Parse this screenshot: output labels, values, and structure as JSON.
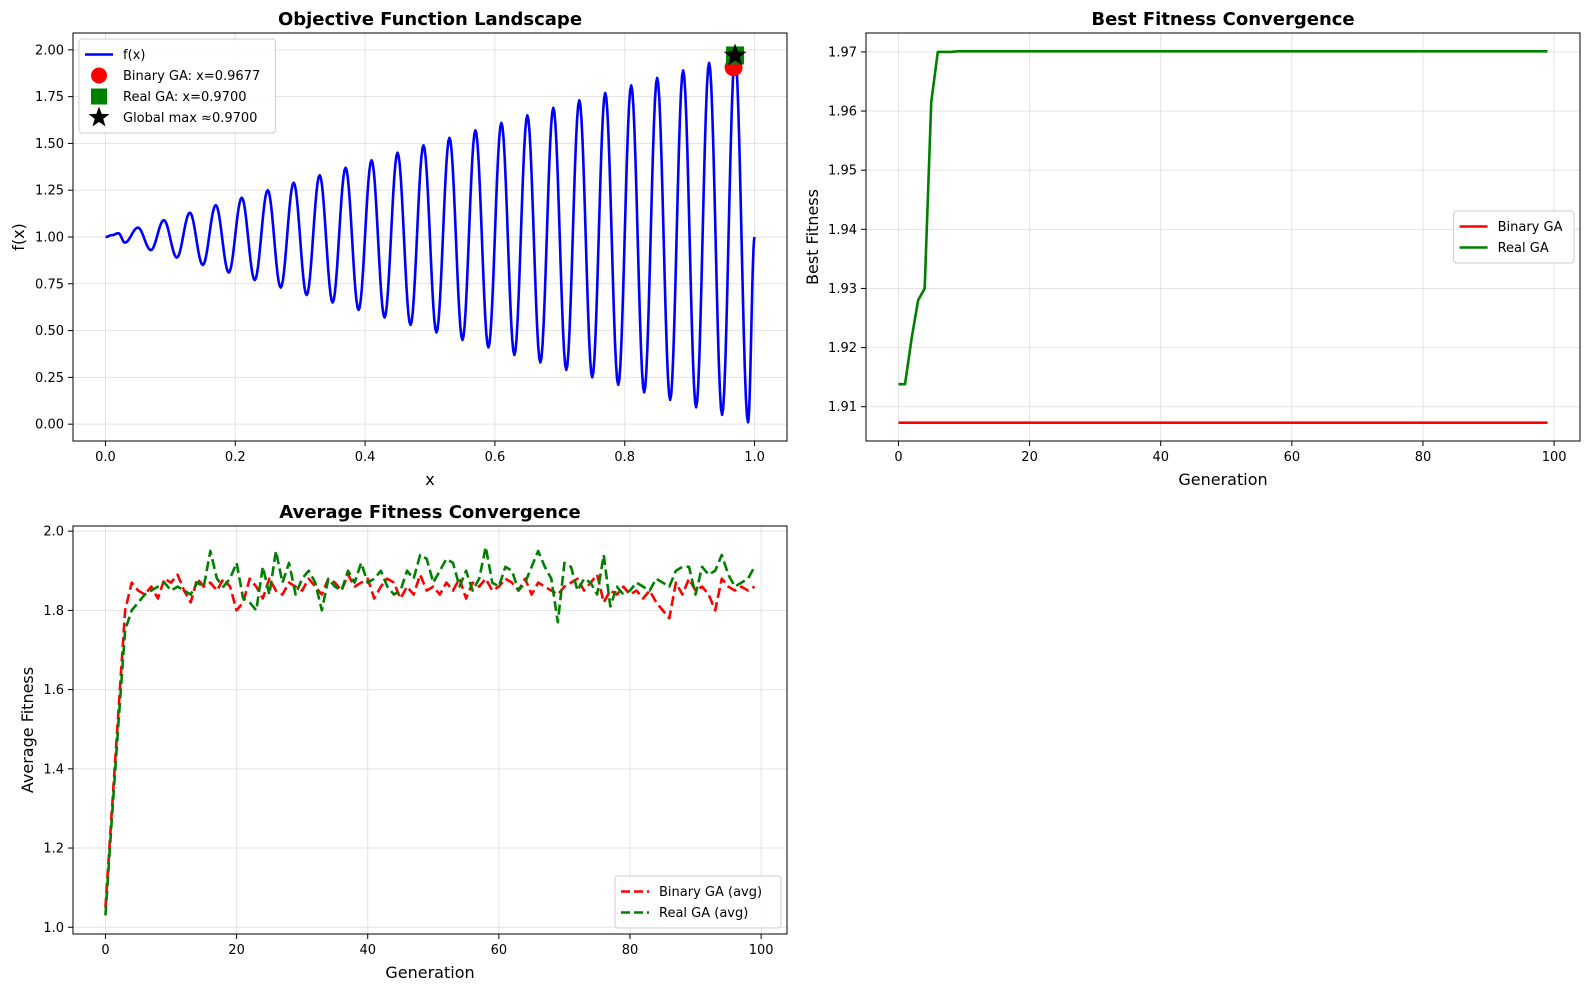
{
  "chart_data": [
    {
      "type": "line",
      "title": "Objective Function Landscape",
      "xlabel": "x",
      "ylabel": "f(x)",
      "xlim": [
        -0.05,
        1.05
      ],
      "ylim": [
        -0.09,
        2.09
      ],
      "x_ticks": [
        0.0,
        0.2,
        0.4,
        0.6,
        0.8,
        1.0
      ],
      "x_tick_labels": [
        "0.0",
        "0.2",
        "0.4",
        "0.6",
        "0.8",
        "1.0"
      ],
      "y_ticks": [
        0.0,
        0.25,
        0.5,
        0.75,
        1.0,
        1.25,
        1.5,
        1.75,
        2.0
      ],
      "y_tick_labels": [
        "0.00",
        "0.25",
        "0.50",
        "0.75",
        "1.00",
        "1.25",
        "1.50",
        "1.75",
        "2.00"
      ],
      "grid": true,
      "legend_position": "top-left",
      "series": [
        {
          "name": "f(x)",
          "color": "#0000ff",
          "style": "solid",
          "x": [
            0.0,
            0.01,
            0.02,
            0.03,
            0.05,
            0.07,
            0.09,
            0.11,
            0.13,
            0.15,
            0.17,
            0.19,
            0.21,
            0.23,
            0.25,
            0.27,
            0.29,
            0.31,
            0.33,
            0.35,
            0.37,
            0.39,
            0.41,
            0.43,
            0.45,
            0.47,
            0.49,
            0.51,
            0.53,
            0.55,
            0.57,
            0.59,
            0.61,
            0.63,
            0.65,
            0.67,
            0.69,
            0.71,
            0.73,
            0.75,
            0.77,
            0.79,
            0.81,
            0.83,
            0.85,
            0.87,
            0.89,
            0.91,
            0.93,
            0.95,
            0.97,
            0.99,
            1.0
          ],
          "y": [
            1.0,
            1.01,
            1.02,
            0.97,
            1.05,
            0.93,
            1.09,
            0.89,
            1.13,
            0.85,
            1.17,
            0.81,
            1.21,
            0.77,
            1.25,
            0.73,
            1.29,
            0.69,
            1.33,
            0.65,
            1.37,
            0.61,
            1.41,
            0.57,
            1.45,
            0.53,
            1.49,
            0.49,
            1.53,
            0.45,
            1.57,
            0.41,
            1.61,
            0.37,
            1.65,
            0.33,
            1.69,
            0.29,
            1.73,
            0.25,
            1.77,
            0.21,
            1.81,
            0.17,
            1.85,
            0.13,
            1.89,
            0.09,
            1.93,
            0.05,
            1.97,
            0.01,
            1.0
          ]
        }
      ],
      "markers": [
        {
          "name": "Binary GA: x=0.9677",
          "shape": "circle",
          "color": "#ff0000",
          "x": 0.9677,
          "y": 1.907
        },
        {
          "name": "Real GA: x=0.9700",
          "shape": "square",
          "color": "#008000",
          "x": 0.97,
          "y": 1.97
        },
        {
          "name": "Global max ≈0.9700",
          "shape": "star",
          "color": "#000000",
          "x": 0.97,
          "y": 1.97
        }
      ]
    },
    {
      "type": "line",
      "title": "Best Fitness Convergence",
      "xlabel": "Generation",
      "ylabel": "Best Fitness",
      "xlim": [
        -4.95,
        103.95
      ],
      "ylim": [
        1.9042,
        1.9732
      ],
      "x_ticks": [
        0,
        20,
        40,
        60,
        80,
        100
      ],
      "x_tick_labels": [
        "0",
        "20",
        "40",
        "60",
        "80",
        "100"
      ],
      "y_ticks": [
        1.91,
        1.92,
        1.93,
        1.94,
        1.95,
        1.96,
        1.97
      ],
      "y_tick_labels": [
        "1.91",
        "1.92",
        "1.93",
        "1.94",
        "1.95",
        "1.96",
        "1.97"
      ],
      "grid": true,
      "legend_position": "center-right",
      "series": [
        {
          "name": "Binary GA",
          "color": "#ff0000",
          "style": "solid",
          "x": [
            0,
            99
          ],
          "y": [
            1.9073,
            1.9073
          ]
        },
        {
          "name": "Real GA",
          "color": "#008000",
          "style": "solid",
          "x": [
            0,
            1,
            2,
            3,
            4,
            5,
            6,
            7,
            8,
            9,
            10,
            99
          ],
          "y": [
            1.9138,
            1.9138,
            1.9215,
            1.928,
            1.93,
            1.9615,
            1.97,
            1.97,
            1.97,
            1.9701,
            1.9701,
            1.9701
          ]
        }
      ]
    },
    {
      "type": "line",
      "title": "Average Fitness Convergence",
      "xlabel": "Generation",
      "ylabel": "Average Fitness",
      "xlim": [
        -4.95,
        103.95
      ],
      "ylim": [
        0.983,
        2.013
      ],
      "x_ticks": [
        0,
        20,
        40,
        60,
        80,
        100
      ],
      "x_tick_labels": [
        "0",
        "20",
        "40",
        "60",
        "80",
        "100"
      ],
      "y_ticks": [
        1.0,
        1.2,
        1.4,
        1.6,
        1.8,
        2.0
      ],
      "y_tick_labels": [
        "1.0",
        "1.2",
        "1.4",
        "1.6",
        "1.8",
        "2.0"
      ],
      "grid": true,
      "legend_position": "bottom-right",
      "series": [
        {
          "name": "Binary GA (avg)",
          "color": "#ff0000",
          "style": "dashed",
          "x": [
            0,
            1,
            2,
            3,
            4,
            5,
            6,
            7,
            8,
            9,
            10,
            11,
            12,
            13,
            14,
            15,
            16,
            17,
            18,
            19,
            20,
            21,
            22,
            23,
            24,
            25,
            26,
            27,
            28,
            29,
            30,
            31,
            32,
            33,
            34,
            35,
            36,
            37,
            38,
            39,
            40,
            41,
            42,
            43,
            44,
            45,
            46,
            47,
            48,
            49,
            50,
            51,
            52,
            53,
            54,
            55,
            56,
            57,
            58,
            59,
            60,
            61,
            62,
            63,
            64,
            65,
            66,
            67,
            68,
            69,
            70,
            71,
            72,
            73,
            74,
            75,
            76,
            77,
            78,
            79,
            80,
            81,
            82,
            83,
            84,
            85,
            86,
            87,
            88,
            89,
            90,
            91,
            92,
            93,
            94,
            95,
            96,
            97,
            98,
            99
          ],
          "y": [
            1.05,
            1.3,
            1.55,
            1.8,
            1.87,
            1.85,
            1.84,
            1.86,
            1.83,
            1.88,
            1.87,
            1.89,
            1.85,
            1.82,
            1.88,
            1.86,
            1.87,
            1.85,
            1.88,
            1.86,
            1.8,
            1.82,
            1.88,
            1.86,
            1.83,
            1.88,
            1.85,
            1.84,
            1.87,
            1.86,
            1.85,
            1.88,
            1.86,
            1.84,
            1.88,
            1.87,
            1.85,
            1.89,
            1.86,
            1.87,
            1.88,
            1.83,
            1.86,
            1.88,
            1.87,
            1.83,
            1.86,
            1.84,
            1.89,
            1.85,
            1.86,
            1.84,
            1.87,
            1.85,
            1.88,
            1.83,
            1.87,
            1.86,
            1.88,
            1.85,
            1.86,
            1.88,
            1.87,
            1.85,
            1.88,
            1.84,
            1.87,
            1.86,
            1.85,
            1.84,
            1.86,
            1.87,
            1.88,
            1.85,
            1.87,
            1.89,
            1.82,
            1.85,
            1.84,
            1.86,
            1.84,
            1.85,
            1.83,
            1.85,
            1.82,
            1.8,
            1.78,
            1.87,
            1.84,
            1.88,
            1.85,
            1.86,
            1.84,
            1.8,
            1.88,
            1.86,
            1.85,
            1.86,
            1.85,
            1.86
          ]
        },
        {
          "name": "Real GA (avg)",
          "color": "#008000",
          "style": "dashed",
          "x": [
            0,
            1,
            2,
            3,
            4,
            5,
            6,
            7,
            8,
            9,
            10,
            11,
            12,
            13,
            14,
            15,
            16,
            17,
            18,
            19,
            20,
            21,
            22,
            23,
            24,
            25,
            26,
            27,
            28,
            29,
            30,
            31,
            32,
            33,
            34,
            35,
            36,
            37,
            38,
            39,
            40,
            41,
            42,
            43,
            44,
            45,
            46,
            47,
            48,
            49,
            50,
            51,
            52,
            53,
            54,
            55,
            56,
            57,
            58,
            59,
            60,
            61,
            62,
            63,
            64,
            65,
            66,
            67,
            68,
            69,
            70,
            71,
            72,
            73,
            74,
            75,
            76,
            77,
            78,
            79,
            80,
            81,
            82,
            83,
            84,
            85,
            86,
            87,
            88,
            89,
            90,
            91,
            92,
            93,
            94,
            95,
            96,
            97,
            98,
            99
          ],
          "y": [
            1.03,
            1.28,
            1.52,
            1.75,
            1.8,
            1.82,
            1.84,
            1.85,
            1.86,
            1.87,
            1.85,
            1.86,
            1.85,
            1.84,
            1.87,
            1.86,
            1.95,
            1.88,
            1.86,
            1.88,
            1.92,
            1.83,
            1.82,
            1.8,
            1.91,
            1.84,
            1.95,
            1.87,
            1.92,
            1.84,
            1.88,
            1.9,
            1.87,
            1.8,
            1.88,
            1.86,
            1.85,
            1.9,
            1.87,
            1.92,
            1.87,
            1.88,
            1.9,
            1.86,
            1.84,
            1.85,
            1.9,
            1.88,
            1.94,
            1.93,
            1.87,
            1.9,
            1.93,
            1.92,
            1.86,
            1.9,
            1.85,
            1.88,
            1.96,
            1.87,
            1.86,
            1.91,
            1.9,
            1.85,
            1.87,
            1.91,
            1.95,
            1.91,
            1.88,
            1.77,
            1.92,
            1.91,
            1.85,
            1.88,
            1.87,
            1.84,
            1.94,
            1.81,
            1.86,
            1.84,
            1.85,
            1.87,
            1.86,
            1.85,
            1.88,
            1.87,
            1.86,
            1.9,
            1.91,
            1.91,
            1.84,
            1.91,
            1.89,
            1.9,
            1.94,
            1.89,
            1.86,
            1.87,
            1.88,
            1.91
          ]
        }
      ]
    }
  ]
}
